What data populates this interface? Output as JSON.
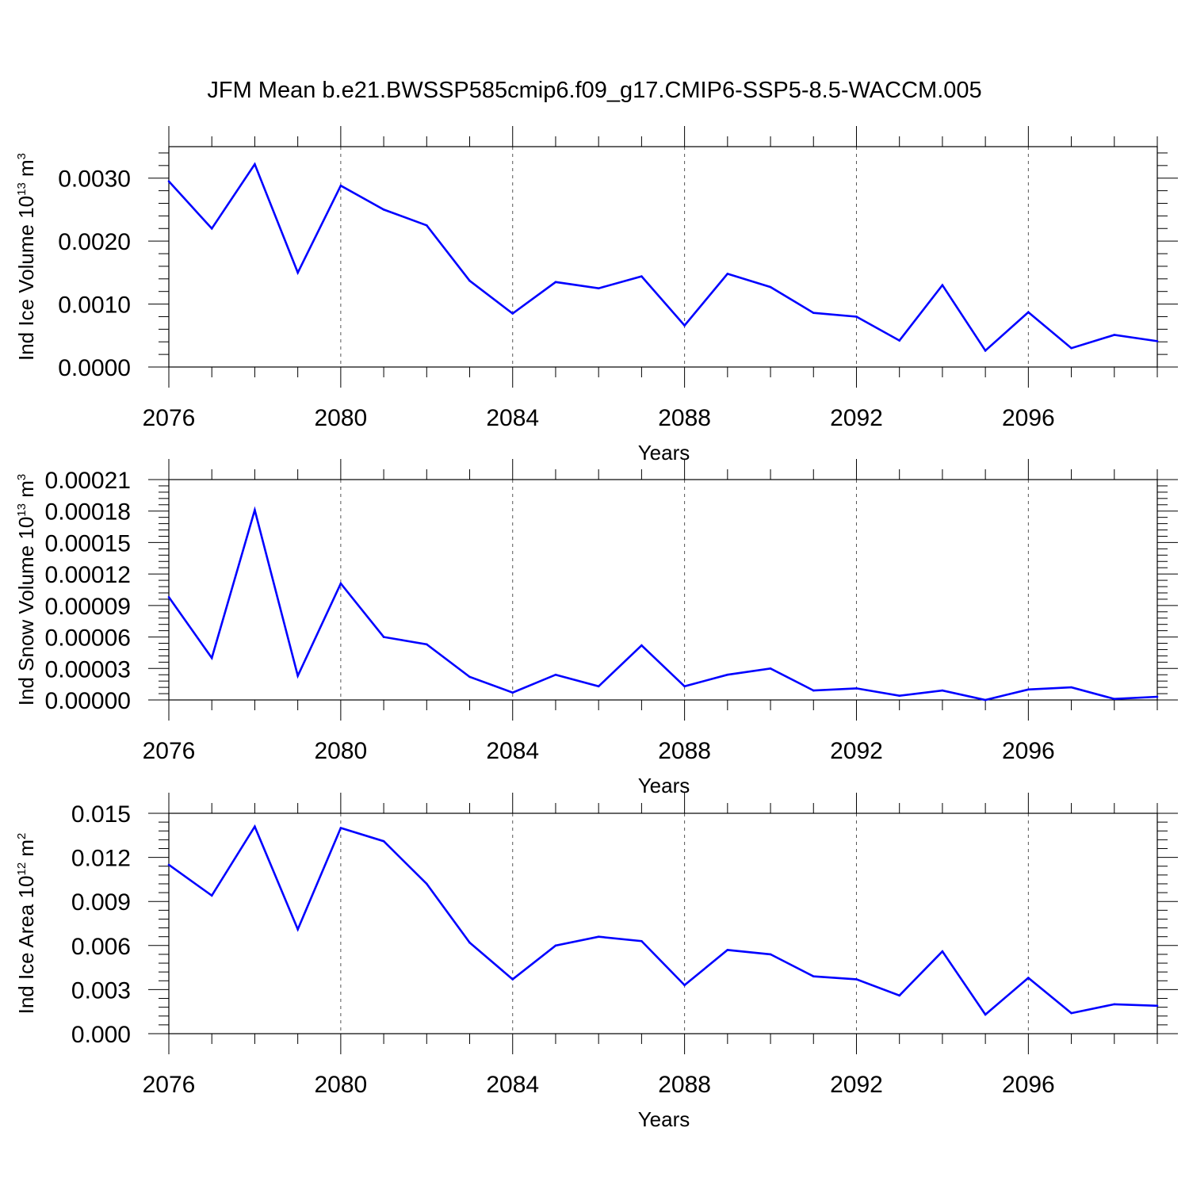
{
  "title": "JFM Mean b.e21.BWSSP585cmip6.f09_g17.CMIP6-SSP5-8.5-WACCM.005",
  "colors": {
    "line": "#0000ff",
    "axis": "#000000",
    "grid": "#555555"
  },
  "chart_data": [
    {
      "type": "line",
      "xlabel": "Years",
      "ylabel": {
        "text": "Ind Ice Volume 10",
        "exponent": "13",
        "unit": " m",
        "unit_exponent": "3"
      },
      "xlim": [
        2076,
        2099
      ],
      "ylim": [
        0.0,
        0.0035
      ],
      "xticks": [
        2076,
        2080,
        2084,
        2088,
        2092,
        2096
      ],
      "xtick_labels": [
        "2076",
        "2080",
        "2084",
        "2088",
        "2092",
        "2096"
      ],
      "yticks": [
        0.0,
        0.001,
        0.002,
        0.003
      ],
      "ytick_labels": [
        "0.0000",
        "0.0010",
        "0.0020",
        "0.0030"
      ],
      "grid": "vertical dashed at major x ticks",
      "x": [
        2076,
        2077,
        2078,
        2079,
        2080,
        2081,
        2082,
        2083,
        2084,
        2085,
        2086,
        2087,
        2088,
        2089,
        2090,
        2091,
        2092,
        2093,
        2094,
        2095,
        2096,
        2097,
        2098,
        2099
      ],
      "values": [
        0.00295,
        0.0022,
        0.00322,
        0.0015,
        0.00288,
        0.0025,
        0.00225,
        0.00137,
        0.00085,
        0.00135,
        0.00125,
        0.00144,
        0.00066,
        0.00148,
        0.00127,
        0.00086,
        0.0008,
        0.00042,
        0.0013,
        0.00026,
        0.00087,
        0.0003,
        0.00051,
        0.00041
      ]
    },
    {
      "type": "line",
      "xlabel": "Years",
      "ylabel": {
        "text": "Ind Snow Volume 10",
        "exponent": "13",
        "unit": " m",
        "unit_exponent": "3"
      },
      "xlim": [
        2076,
        2099
      ],
      "ylim": [
        0.0,
        0.00021
      ],
      "xticks": [
        2076,
        2080,
        2084,
        2088,
        2092,
        2096
      ],
      "xtick_labels": [
        "2076",
        "2080",
        "2084",
        "2088",
        "2092",
        "2096"
      ],
      "yticks": [
        0.0,
        3e-05,
        6e-05,
        9e-05,
        0.00012,
        0.00015,
        0.00018,
        0.00021
      ],
      "ytick_labels": [
        "0.00000",
        "0.00003",
        "0.00006",
        "0.00009",
        "0.00012",
        "0.00015",
        "0.00018",
        "0.00021"
      ],
      "grid": "vertical dashed at major x ticks",
      "x": [
        2076,
        2077,
        2078,
        2079,
        2080,
        2081,
        2082,
        2083,
        2084,
        2085,
        2086,
        2087,
        2088,
        2089,
        2090,
        2091,
        2092,
        2093,
        2094,
        2095,
        2096,
        2097,
        2098,
        2099
      ],
      "values": [
        9.8e-05,
        4e-05,
        0.000181,
        2.3e-05,
        0.000111,
        6e-05,
        5.3e-05,
        2.2e-05,
        7e-06,
        2.4e-05,
        1.3e-05,
        5.2e-05,
        1.3e-05,
        2.4e-05,
        3e-05,
        9e-06,
        1.1e-05,
        4e-06,
        9e-06,
        0.0,
        1e-05,
        1.2e-05,
        1e-06,
        3e-06
      ]
    },
    {
      "type": "line",
      "xlabel": "Years",
      "ylabel": {
        "text": "Ind Ice Area 10",
        "exponent": "12",
        "unit": " m",
        "unit_exponent": "2"
      },
      "xlim": [
        2076,
        2099
      ],
      "ylim": [
        0.0,
        0.015
      ],
      "xticks": [
        2076,
        2080,
        2084,
        2088,
        2092,
        2096
      ],
      "xtick_labels": [
        "2076",
        "2080",
        "2084",
        "2088",
        "2092",
        "2096"
      ],
      "yticks": [
        0.0,
        0.003,
        0.006,
        0.009,
        0.012,
        0.015
      ],
      "ytick_labels": [
        "0.000",
        "0.003",
        "0.006",
        "0.009",
        "0.012",
        "0.015"
      ],
      "grid": "vertical dashed at major x ticks",
      "x": [
        2076,
        2077,
        2078,
        2079,
        2080,
        2081,
        2082,
        2083,
        2084,
        2085,
        2086,
        2087,
        2088,
        2089,
        2090,
        2091,
        2092,
        2093,
        2094,
        2095,
        2096,
        2097,
        2098,
        2099
      ],
      "values": [
        0.0115,
        0.0094,
        0.0141,
        0.0071,
        0.014,
        0.0131,
        0.0102,
        0.0062,
        0.0037,
        0.006,
        0.0066,
        0.0063,
        0.0033,
        0.0057,
        0.0054,
        0.0039,
        0.0037,
        0.0026,
        0.0056,
        0.0013,
        0.0038,
        0.0014,
        0.002,
        0.0019
      ]
    }
  ]
}
